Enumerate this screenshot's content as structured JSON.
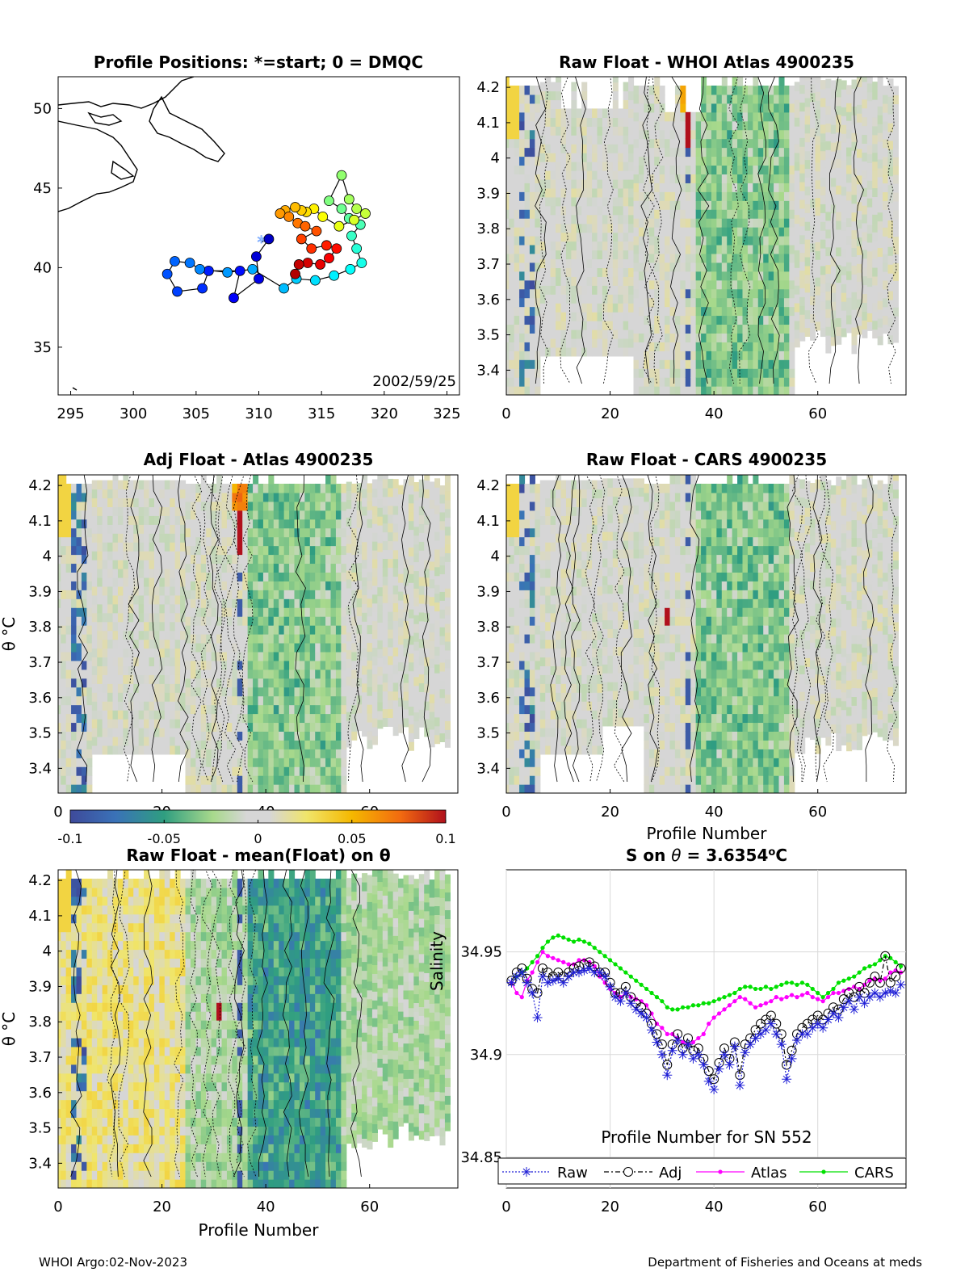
{
  "footer": {
    "left": "WHOI Argo:02-Nov-2023",
    "right": "Department of Fisheries and Oceans at meds"
  },
  "colors": {
    "contour": "#000000",
    "raw": "#1f1fd6",
    "adj": "#000000",
    "atlas": "#ff00ff",
    "cars": "#00e000",
    "grid": "#d9d9d9"
  },
  "chart_data": [
    {
      "id": "map",
      "type": "scatter",
      "title": "Profile Positions: *=start; 0 = DMQC",
      "x_ticks": [
        "295",
        "300",
        "305",
        "310",
        "315",
        "320",
        "325"
      ],
      "y_ticks": [
        "35",
        "40",
        "45",
        "50"
      ],
      "xlim": [
        294,
        326
      ],
      "ylim": [
        32,
        52
      ],
      "annotation": "2002/59/25",
      "track": [
        [
          310.2,
          41.6
        ],
        [
          310.8,
          41.8
        ],
        [
          309.8,
          40.7
        ],
        [
          310,
          39.3
        ],
        [
          308,
          38.1
        ],
        [
          308.5,
          39.8
        ],
        [
          306,
          39.8
        ],
        [
          305.5,
          38.7
        ],
        [
          303.5,
          38.5
        ],
        [
          302.7,
          39.6
        ],
        [
          303.3,
          40.4
        ],
        [
          304.5,
          40.3
        ],
        [
          305.3,
          39.9
        ],
        [
          307.5,
          39.7
        ],
        [
          309.5,
          39.9
        ],
        [
          312,
          38.7
        ],
        [
          313,
          39.3
        ],
        [
          314.5,
          39.2
        ],
        [
          316,
          39.5
        ],
        [
          317.3,
          39.9
        ],
        [
          318.2,
          40.3
        ],
        [
          317.8,
          41.2
        ],
        [
          317.4,
          42
        ],
        [
          318.1,
          42.7
        ],
        [
          317.2,
          43.1
        ],
        [
          316.6,
          43.7
        ],
        [
          315.6,
          44.2
        ],
        [
          316.6,
          45.8
        ],
        [
          317.2,
          44.3
        ],
        [
          317.8,
          43.7
        ],
        [
          318.5,
          43.4
        ],
        [
          317.6,
          43
        ],
        [
          316.4,
          42.6
        ],
        [
          315.1,
          43.2
        ],
        [
          314.4,
          43.7
        ],
        [
          313.8,
          43.5
        ],
        [
          313.4,
          43.6
        ],
        [
          312.9,
          43.8
        ],
        [
          312.1,
          43.6
        ],
        [
          311.7,
          43.4
        ],
        [
          312.4,
          43.2
        ],
        [
          313.1,
          42.8
        ],
        [
          313.7,
          42.6
        ],
        [
          314.6,
          42.3
        ],
        [
          313.4,
          41.8
        ],
        [
          314.2,
          41.2
        ],
        [
          315.4,
          41.4
        ],
        [
          316.2,
          41.2
        ],
        [
          315.6,
          40.6
        ],
        [
          314.9,
          40.2
        ],
        [
          313.9,
          40.3
        ],
        [
          313.2,
          40.2
        ],
        [
          312.9,
          39.6
        ]
      ],
      "colorscale": "jet"
    },
    {
      "id": "raw_whoi",
      "type": "heatmap",
      "title": "Raw Float - WHOI Atlas  4900235",
      "x_ticks": [
        "0",
        "20",
        "40",
        "60"
      ],
      "y_ticks": [
        "3.4",
        "3.5",
        "3.6",
        "3.7",
        "3.8",
        "3.9",
        "4",
        "4.1",
        "4.2"
      ],
      "xlim": [
        0,
        77
      ],
      "ylim": [
        3.33,
        4.23
      ],
      "xlabel": "",
      "ylabel": ""
    },
    {
      "id": "adj_atlas",
      "type": "heatmap",
      "title": "Adj Float - Atlas  4900235",
      "x_ticks": [
        "0",
        "20",
        "40",
        "60"
      ],
      "y_ticks": [
        "3.4",
        "3.5",
        "3.6",
        "3.7",
        "3.8",
        "3.9",
        "4",
        "4.1",
        "4.2"
      ],
      "xlim": [
        0,
        77
      ],
      "ylim": [
        3.33,
        4.23
      ],
      "xlabel": "",
      "ylabel": "θ °C"
    },
    {
      "id": "raw_cars",
      "type": "heatmap",
      "title": "Raw Float - CARS  4900235",
      "x_ticks": [
        "0",
        "20",
        "40",
        "60"
      ],
      "y_ticks": [
        "3.4",
        "3.5",
        "3.6",
        "3.7",
        "3.8",
        "3.9",
        "4",
        "4.1",
        "4.2"
      ],
      "xlim": [
        0,
        77
      ],
      "ylim": [
        3.33,
        4.23
      ],
      "xlabel": "Profile Number",
      "ylabel": ""
    },
    {
      "id": "colorbar",
      "type": "heatmap",
      "ticks": [
        "-0.1",
        "-0.05",
        "0",
        "0.05",
        "0.1"
      ],
      "range": [
        -0.1,
        0.1
      ]
    },
    {
      "id": "raw_mean",
      "type": "heatmap",
      "title": "Raw Float - mean(Float) on θ",
      "x_ticks": [
        "0",
        "20",
        "40",
        "60"
      ],
      "y_ticks": [
        "3.4",
        "3.5",
        "3.6",
        "3.7",
        "3.8",
        "3.9",
        "4",
        "4.1",
        "4.2"
      ],
      "xlim": [
        0,
        77
      ],
      "ylim": [
        3.33,
        4.23
      ],
      "xlabel": "Profile Number",
      "ylabel": "θ °C"
    },
    {
      "id": "salinity",
      "type": "line",
      "title": "S on θ = 3.6354°C",
      "xlabel": "Profile Number for SN 552",
      "ylabel": "Salinity",
      "x_ticks": [
        "0",
        "20",
        "40",
        "60"
      ],
      "y_ticks": [
        "34.85",
        "34.9",
        "34.95"
      ],
      "xlim": [
        0,
        77
      ],
      "ylim": [
        34.835,
        34.99
      ],
      "legend": [
        "Raw",
        "Adj",
        "Atlas",
        "CARS"
      ],
      "series": [
        {
          "name": "Raw",
          "values": [
            34.935,
            34.938,
            34.94,
            34.935,
            34.93,
            34.918,
            34.938,
            34.935,
            34.936,
            34.937,
            34.935,
            34.938,
            34.94,
            34.94,
            34.941,
            34.942,
            34.94,
            34.94,
            34.938,
            34.933,
            34.928,
            34.926,
            34.93,
            34.925,
            34.922,
            34.92,
            34.918,
            34.912,
            34.906,
            34.9,
            34.89,
            34.902,
            34.907,
            34.9,
            34.905,
            34.898,
            34.9,
            34.895,
            34.887,
            34.883,
            34.893,
            34.9,
            34.895,
            34.904,
            34.885,
            34.901,
            34.905,
            34.908,
            34.91,
            34.912,
            34.915,
            34.91,
            34.905,
            34.888,
            34.898,
            34.907,
            34.91,
            34.91,
            34.913,
            34.915,
            34.913,
            34.917,
            34.92,
            34.918,
            34.923,
            34.926,
            34.922,
            34.928,
            34.925,
            34.928,
            34.93,
            34.928,
            34.93,
            34.931,
            34.93,
            34.934
          ]
        },
        {
          "name": "Adj",
          "values": [
            34.936,
            34.94,
            34.942,
            34.937,
            34.932,
            34.93,
            34.942,
            34.94,
            34.938,
            34.94,
            34.938,
            34.94,
            34.942,
            34.943,
            34.944,
            34.945,
            34.943,
            34.94,
            34.94,
            34.935,
            34.93,
            34.93,
            34.933,
            34.928,
            34.925,
            34.923,
            34.92,
            34.915,
            34.91,
            34.905,
            34.895,
            34.905,
            34.91,
            34.903,
            34.908,
            34.902,
            34.903,
            34.898,
            34.892,
            34.888,
            34.896,
            34.903,
            34.898,
            34.906,
            34.89,
            34.905,
            34.908,
            34.912,
            34.915,
            34.917,
            34.919,
            34.915,
            34.91,
            34.895,
            34.902,
            34.91,
            34.913,
            34.915,
            34.917,
            34.919,
            34.917,
            34.92,
            34.923,
            34.922,
            34.927,
            34.93,
            34.928,
            34.933,
            34.93,
            34.935,
            34.938,
            34.935,
            34.948,
            34.935,
            34.938,
            34.942
          ]
        },
        {
          "name": "Atlas",
          "values": [
            34.935,
            34.93,
            34.928,
            34.936,
            34.94,
            34.945,
            34.95,
            34.948,
            34.947,
            34.946,
            34.945,
            34.944,
            34.944,
            34.946,
            34.946,
            34.945,
            34.943,
            34.938,
            34.935,
            34.932,
            34.93,
            34.928,
            34.93,
            34.928,
            34.927,
            34.926,
            34.924,
            34.92,
            34.915,
            34.913,
            34.91,
            34.91,
            34.908,
            34.906,
            34.905,
            34.906,
            34.908,
            34.91,
            34.915,
            34.918,
            34.92,
            34.922,
            34.924,
            34.926,
            34.928,
            34.927,
            34.925,
            34.923,
            34.924,
            34.925,
            34.926,
            34.928,
            34.927,
            34.928,
            34.929,
            34.928,
            34.929,
            34.93,
            34.928,
            34.927,
            34.926,
            34.928,
            34.93,
            34.93,
            34.931,
            34.932,
            34.933,
            34.932,
            34.934,
            34.936,
            34.937,
            34.936,
            34.937,
            34.94,
            34.941,
            34.94
          ]
        },
        {
          "name": "CARS",
          "values": [
            34.935,
            34.938,
            34.94,
            34.942,
            34.945,
            34.948,
            34.952,
            34.955,
            34.957,
            34.958,
            34.957,
            34.956,
            34.955,
            34.956,
            34.955,
            34.954,
            34.952,
            34.95,
            34.948,
            34.946,
            34.944,
            34.942,
            34.94,
            34.938,
            34.936,
            34.934,
            34.932,
            34.93,
            34.928,
            34.926,
            34.923,
            34.922,
            34.922,
            34.923,
            34.923,
            34.924,
            34.924,
            34.925,
            34.925,
            34.926,
            34.927,
            34.928,
            34.929,
            34.93,
            34.932,
            34.933,
            34.933,
            34.932,
            34.932,
            34.933,
            34.932,
            34.933,
            34.934,
            34.935,
            34.935,
            34.934,
            34.935,
            34.934,
            34.932,
            34.93,
            34.928,
            34.93,
            34.932,
            34.935,
            34.936,
            34.937,
            34.938,
            34.94,
            34.942,
            34.943,
            34.944,
            34.946,
            34.948,
            34.947,
            34.945,
            34.943
          ]
        }
      ]
    }
  ]
}
